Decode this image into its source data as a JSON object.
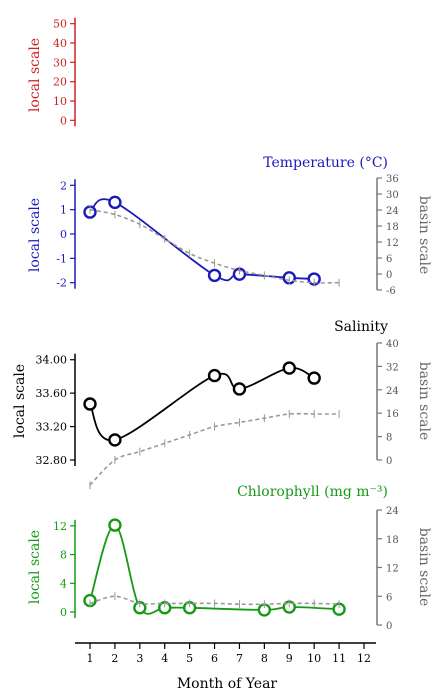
{
  "chart_data": [
    {
      "type": "line",
      "title": "",
      "ylabel": "local scale",
      "ylim": [
        -5,
        55
      ],
      "yticks": [
        0,
        10,
        20,
        30,
        40,
        50
      ],
      "color": "#cc2222",
      "series": []
    },
    {
      "type": "line",
      "title": "Temperature (°C)",
      "ylabel": "local scale",
      "ylabel_right": "basin scale",
      "ylim": [
        -2.3,
        2.3
      ],
      "yticks": [
        -2,
        -1,
        0,
        1,
        2
      ],
      "ylim_right": [
        -6,
        36
      ],
      "yticks_right": [
        -6,
        0,
        6,
        12,
        18,
        24,
        30,
        36
      ],
      "color": "#1a1ab8",
      "series": [
        {
          "role": "local",
          "x": [
            1,
            2,
            6,
            7,
            9,
            10
          ],
          "y": [
            0.9,
            1.3,
            -1.7,
            -1.65,
            -1.8,
            -1.85
          ]
        },
        {
          "role": "basin",
          "x": [
            1,
            2,
            3,
            4,
            5,
            6,
            7,
            8,
            9,
            10,
            11
          ],
          "y": [
            1.0,
            0.8,
            0.4,
            -0.2,
            -0.8,
            -1.2,
            -1.5,
            -1.7,
            -1.9,
            -2.0,
            -2.0
          ]
        }
      ]
    },
    {
      "type": "line",
      "title": "Salinity",
      "ylabel": "local scale",
      "ylabel_right": "basin scale",
      "ylim": [
        32.8,
        34.2
      ],
      "yticks": [
        "32.80",
        "33.20",
        "33.60",
        "34.00"
      ],
      "ylim_right": [
        0,
        40
      ],
      "yticks_right": [
        0,
        8,
        16,
        24,
        32,
        40
      ],
      "color": "#000000",
      "series": [
        {
          "role": "local",
          "x": [
            1,
            2,
            6,
            7,
            9,
            10
          ],
          "y": [
            33.47,
            33.04,
            33.81,
            33.65,
            33.9,
            33.78
          ]
        },
        {
          "role": "basin",
          "x": [
            1,
            2,
            3,
            4,
            5,
            6,
            7,
            8,
            9,
            10,
            11
          ],
          "y": [
            32.5,
            32.8,
            32.9,
            33.0,
            33.1,
            33.2,
            33.25,
            33.3,
            33.35,
            33.35,
            33.35
          ]
        }
      ]
    },
    {
      "type": "line",
      "title": "Chlorophyll (mg m⁻³)",
      "ylabel": "local scale",
      "ylabel_right": "basin scale",
      "ylim": [
        -1.8,
        14.2
      ],
      "yticks": [
        0,
        4,
        8,
        12
      ],
      "ylim_right": [
        0,
        24
      ],
      "yticks_right": [
        0,
        6,
        12,
        18,
        24
      ],
      "color": "#169a16",
      "series": [
        {
          "role": "local",
          "x": [
            1,
            2,
            3,
            4,
            5,
            8,
            9,
            11
          ],
          "y": [
            1.6,
            12.1,
            0.6,
            0.6,
            0.6,
            0.3,
            0.7,
            0.4
          ]
        },
        {
          "role": "basin",
          "x": [
            1,
            2,
            3,
            4,
            5,
            6,
            7,
            8,
            9,
            10,
            11
          ],
          "y": [
            1.2,
            2.2,
            1.2,
            1.2,
            1.2,
            1.2,
            1.1,
            1.1,
            1.2,
            1.2,
            1.1
          ]
        }
      ]
    }
  ],
  "x_axis": {
    "label": "Month of Year",
    "ticks": [
      "1",
      "2",
      "3",
      "4",
      "5",
      "6",
      "7",
      "8",
      "9",
      "10",
      "11",
      "12"
    ]
  },
  "basin_style": {
    "color": "#999999"
  }
}
